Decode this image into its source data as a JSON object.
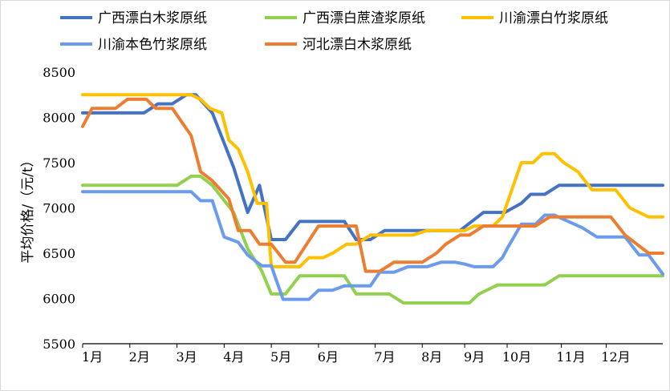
{
  "chart_data": {
    "type": "line",
    "title": "",
    "xlabel": "",
    "ylabel": "平均价格/（元/t）",
    "ylim": [
      5500,
      8500
    ],
    "yticks": [
      5500,
      6000,
      6500,
      7000,
      7500,
      8000,
      8500
    ],
    "x_tick_labels": [
      "1月",
      "2月",
      "3月",
      "4月",
      "5月",
      "6月",
      "7月",
      "8月",
      "9月",
      "10月",
      "11月",
      "12月"
    ],
    "x_tick_positions": [
      0,
      1,
      2,
      3,
      4,
      5,
      6.2,
      7.2,
      8.1,
      9.0,
      10.15,
      11.1
    ],
    "xlim": [
      0,
      12.3
    ],
    "legend_position": "top",
    "colors": {
      "blue": "#4472C4",
      "green": "#92D050",
      "gold": "#FFC000",
      "lightblue": "#6C9BEB",
      "orange": "#ED7D31",
      "axis": "#000000"
    },
    "series": [
      {
        "name": "广西漂白木浆原纸",
        "color": "#4472C4",
        "x": [
          0,
          0.7,
          1.3,
          1.6,
          1.9,
          2.2,
          2.4,
          2.75,
          3.2,
          3.5,
          3.75,
          4.0,
          4.3,
          4.6,
          4.9,
          5.2,
          5.55,
          5.8,
          6.1,
          6.4,
          6.6,
          7.0,
          7.4,
          7.8,
          8.0,
          8.25,
          8.5,
          8.7,
          8.95,
          9.3,
          9.5,
          9.8,
          10.1,
          10.5,
          11.0,
          11.5,
          12.3
        ],
        "values": [
          8050,
          8050,
          8050,
          8150,
          8150,
          8250,
          8250,
          8050,
          7450,
          6950,
          7250,
          6650,
          6650,
          6850,
          6850,
          6850,
          6850,
          6650,
          6650,
          6750,
          6750,
          6750,
          6750,
          6750,
          6750,
          6850,
          6950,
          6950,
          6950,
          7050,
          7150,
          7150,
          7250,
          7250,
          7250,
          7250,
          7250
        ]
      },
      {
        "name": "广西漂白蔗渣浆原纸",
        "color": "#92D050",
        "x": [
          0,
          0.7,
          1.3,
          1.8,
          2.0,
          2.3,
          2.5,
          2.75,
          3.2,
          3.5,
          3.8,
          4.0,
          4.3,
          4.6,
          4.9,
          5.2,
          5.55,
          5.8,
          6.1,
          6.5,
          6.8,
          7.2,
          7.6,
          8.0,
          8.2,
          8.4,
          8.8,
          9.0,
          9.2,
          9.5,
          9.8,
          10.1,
          10.5,
          11.0,
          11.5,
          12.3
        ],
        "values": [
          7250,
          7250,
          7250,
          7250,
          7250,
          7350,
          7350,
          7250,
          6950,
          6550,
          6300,
          6050,
          6050,
          6250,
          6250,
          6250,
          6250,
          6050,
          6050,
          6050,
          5950,
          5950,
          5950,
          5950,
          5950,
          6050,
          6150,
          6150,
          6150,
          6150,
          6150,
          6250,
          6250,
          6250,
          6250,
          6250
        ]
      },
      {
        "name": "川渝漂白竹浆原纸",
        "color": "#FFC000",
        "x": [
          0,
          0.7,
          1.3,
          1.8,
          2.0,
          2.3,
          2.5,
          2.7,
          2.95,
          3.1,
          3.3,
          3.5,
          3.7,
          3.9,
          4.0,
          4.3,
          4.6,
          4.8,
          5.1,
          5.3,
          5.6,
          5.8,
          6.1,
          6.4,
          6.7,
          7.0,
          7.3,
          7.6,
          7.9,
          8.1,
          8.3,
          8.5,
          8.7,
          8.9,
          9.1,
          9.3,
          9.55,
          9.75,
          10.0,
          10.2,
          10.5,
          10.8,
          11.0,
          11.3,
          11.6,
          12.0,
          12.3
        ],
        "values": [
          8250,
          8250,
          8250,
          8250,
          8250,
          8250,
          8200,
          8100,
          8050,
          7750,
          7650,
          7400,
          7050,
          7050,
          6350,
          6350,
          6350,
          6450,
          6450,
          6500,
          6600,
          6600,
          6700,
          6700,
          6700,
          6700,
          6750,
          6750,
          6750,
          6750,
          6800,
          6800,
          6800,
          6900,
          7200,
          7500,
          7500,
          7600,
          7600,
          7500,
          7400,
          7200,
          7200,
          7200,
          7000,
          6900,
          6900
        ]
      },
      {
        "name": "川渝本色竹浆原纸",
        "color": "#6C9BEB",
        "x": [
          0,
          0.7,
          1.3,
          1.8,
          2.0,
          2.3,
          2.5,
          2.75,
          3.0,
          3.3,
          3.5,
          3.8,
          4.0,
          4.25,
          4.5,
          4.8,
          5.0,
          5.3,
          5.55,
          5.8,
          6.1,
          6.3,
          6.6,
          6.9,
          7.3,
          7.6,
          7.9,
          8.1,
          8.3,
          8.5,
          8.7,
          8.9,
          9.0,
          9.3,
          9.6,
          9.8,
          10.0,
          10.3,
          10.6,
          10.9,
          11.2,
          11.5,
          11.8,
          12.0,
          12.3
        ],
        "values": [
          7180,
          7180,
          7180,
          7180,
          7180,
          7180,
          7080,
          7080,
          6680,
          6620,
          6480,
          6360,
          6360,
          5990,
          5990,
          5990,
          6090,
          6090,
          6140,
          6140,
          6140,
          6290,
          6290,
          6350,
          6350,
          6400,
          6400,
          6380,
          6350,
          6350,
          6350,
          6450,
          6550,
          6820,
          6820,
          6920,
          6920,
          6850,
          6780,
          6680,
          6680,
          6680,
          6480,
          6480,
          6270
        ]
      },
      {
        "name": "河北漂白木浆原纸",
        "color": "#ED7D31",
        "x": [
          0,
          0.2,
          0.7,
          0.95,
          1.15,
          1.35,
          1.55,
          1.9,
          2.3,
          2.5,
          2.75,
          3.1,
          3.3,
          3.55,
          3.75,
          4.0,
          4.3,
          4.5,
          4.75,
          5.0,
          5.3,
          5.55,
          5.8,
          6.0,
          6.3,
          6.6,
          6.9,
          7.2,
          7.5,
          7.7,
          8.0,
          8.2,
          8.5,
          8.8,
          9.0,
          9.3,
          9.6,
          9.9,
          10.3,
          10.7,
          11.0,
          11.2,
          11.5,
          12.0,
          12.3
        ],
        "values": [
          7900,
          8100,
          8100,
          8200,
          8200,
          8200,
          8100,
          8100,
          7800,
          7400,
          7300,
          7100,
          6750,
          6750,
          6600,
          6600,
          6400,
          6400,
          6600,
          6800,
          6800,
          6800,
          6800,
          6300,
          6300,
          6400,
          6400,
          6400,
          6500,
          6600,
          6700,
          6700,
          6800,
          6800,
          6800,
          6800,
          6800,
          6900,
          6900,
          6900,
          6900,
          6900,
          6700,
          6500,
          6500
        ]
      }
    ]
  }
}
